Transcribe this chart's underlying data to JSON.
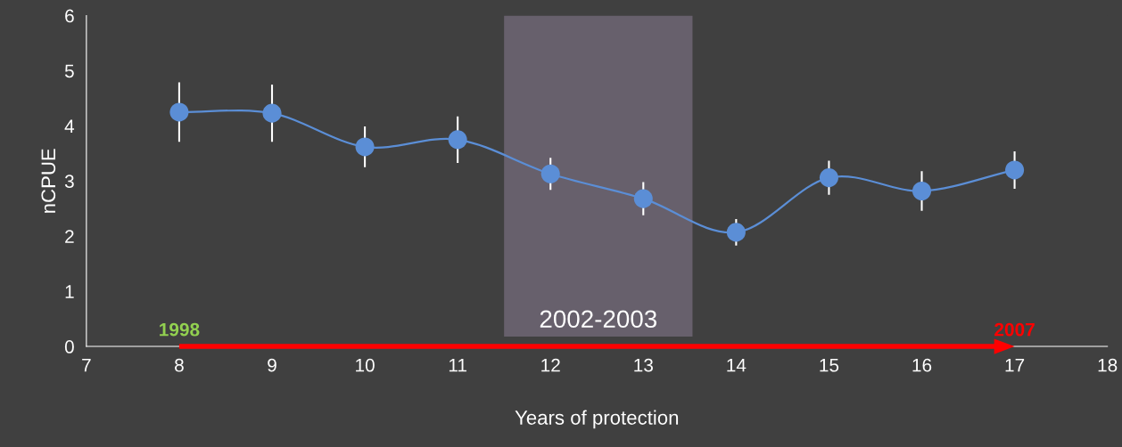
{
  "chart_data": {
    "type": "line",
    "xlabel": "Years of protection",
    "ylabel": "nCPUE",
    "x": [
      8,
      9,
      10,
      11,
      12,
      13,
      14,
      15,
      16,
      17
    ],
    "series": [
      {
        "color": "#5b8ed6",
        "values": [
          4.25,
          4.23,
          3.62,
          3.75,
          3.13,
          2.68,
          2.07,
          3.06,
          2.82,
          3.2
        ],
        "errors": [
          0.54,
          0.52,
          0.37,
          0.42,
          0.29,
          0.3,
          0.24,
          0.31,
          0.36,
          0.34
        ]
      }
    ],
    "marker": "circle",
    "line_style": "solid",
    "grid": false,
    "xlim": [
      7,
      18
    ],
    "xticks": [
      7,
      8,
      9,
      10,
      11,
      12,
      13,
      14,
      15,
      16,
      17,
      18
    ],
    "ylim": [
      0,
      6
    ],
    "yticks": [
      0,
      1,
      2,
      3,
      4,
      5,
      6
    ],
    "bands": [
      {
        "axis": "x",
        "from": 11.5,
        "to": 13.53,
        "label": "2002-2003",
        "color": "#67606c"
      }
    ],
    "annotations": [
      "1998",
      "2007"
    ]
  }
}
